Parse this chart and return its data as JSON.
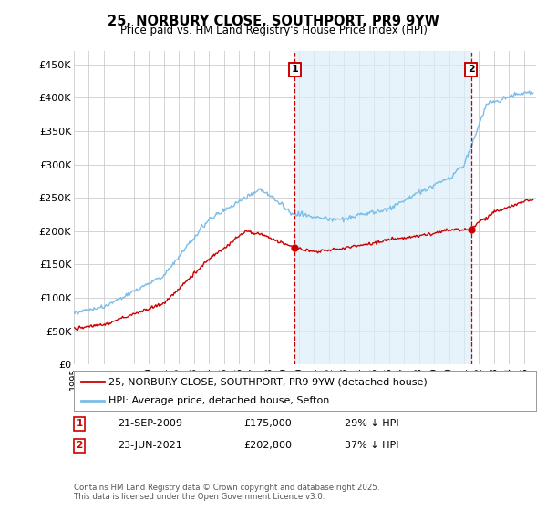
{
  "title": "25, NORBURY CLOSE, SOUTHPORT, PR9 9YW",
  "subtitle": "Price paid vs. HM Land Registry's House Price Index (HPI)",
  "hpi_label": "HPI: Average price, detached house, Sefton",
  "property_label": "25, NORBURY CLOSE, SOUTHPORT, PR9 9YW (detached house)",
  "annotation1": {
    "label": "1",
    "date": "21-SEP-2009",
    "price": "£175,000",
    "pct": "29% ↓ HPI",
    "x_year": 2009.72
  },
  "annotation2": {
    "label": "2",
    "date": "23-JUN-2021",
    "price": "£202,800",
    "pct": "37% ↓ HPI",
    "x_year": 2021.47
  },
  "ylabel_ticks": [
    "£0",
    "£50K",
    "£100K",
    "£150K",
    "£200K",
    "£250K",
    "£300K",
    "£350K",
    "£400K",
    "£450K"
  ],
  "ytick_values": [
    0,
    50000,
    100000,
    150000,
    200000,
    250000,
    300000,
    350000,
    400000,
    450000
  ],
  "hpi_color": "#7abde8",
  "hpi_fill_color": "#ddeef8",
  "property_color": "#cc0000",
  "vline_color": "#cc0000",
  "grid_color": "#cccccc",
  "bg_color": "#ffffff",
  "footnote": "Contains HM Land Registry data © Crown copyright and database right 2025.\nThis data is licensed under the Open Government Licence v3.0.",
  "xlim": [
    1995,
    2025.8
  ],
  "ylim": [
    0,
    470000
  ],
  "sale1_x": 2009.72,
  "sale1_y": 175000,
  "sale2_x": 2021.47,
  "sale2_y": 202800
}
